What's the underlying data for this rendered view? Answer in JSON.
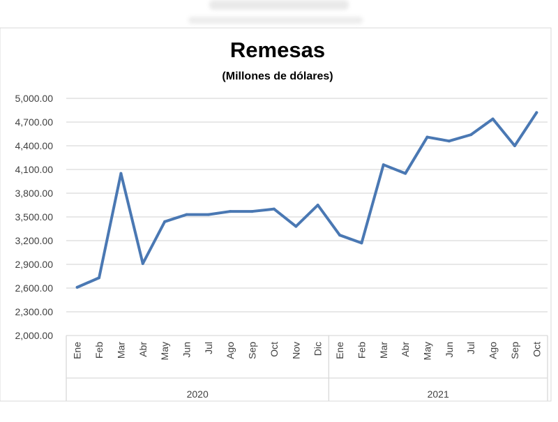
{
  "chart_data": {
    "type": "line",
    "title": "Remesas",
    "subtitle": "(Millones de dólares)",
    "xlabel": "",
    "ylabel": "",
    "ylim": [
      2000,
      5000
    ],
    "yticks": [
      2000,
      2300,
      2600,
      2900,
      3200,
      3500,
      3800,
      4100,
      4400,
      4700,
      5000
    ],
    "ytick_labels": [
      "2,000.00",
      "2,300.00",
      "2,600.00",
      "2,900.00",
      "3,200.00",
      "3,500.00",
      "3,800.00",
      "4,100.00",
      "4,400.00",
      "4,700.00",
      "5,000.00"
    ],
    "grid": true,
    "legend": "none",
    "color": "#4a78b3",
    "categories": [
      "Ene",
      "Feb",
      "Mar",
      "Abr",
      "May",
      "Jun",
      "Jul",
      "Ago",
      "Sep",
      "Oct",
      "Nov",
      "Dic",
      "Ene",
      "Feb",
      "Mar",
      "Abr",
      "May",
      "Jun",
      "Jul",
      "Ago",
      "Sep",
      "Oct"
    ],
    "groups": [
      {
        "label": "2020",
        "count": 12
      },
      {
        "label": "2021",
        "count": 10
      }
    ],
    "series": [
      {
        "values": [
          2610,
          2730,
          4050,
          2910,
          3440,
          3530,
          3530,
          3570,
          3570,
          3600,
          3380,
          3650,
          3270,
          3170,
          4160,
          4050,
          4510,
          4460,
          4540,
          4740,
          4400,
          4820
        ]
      }
    ]
  }
}
